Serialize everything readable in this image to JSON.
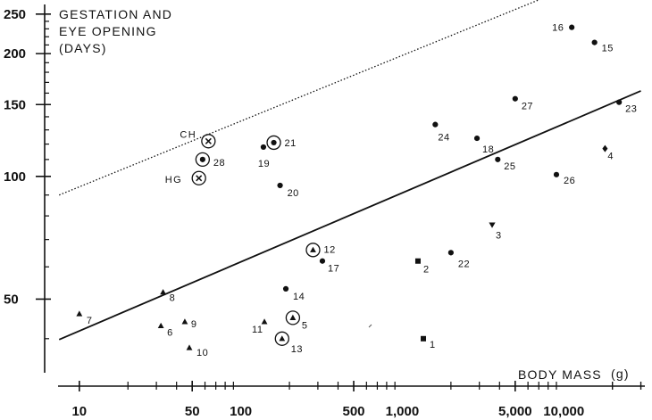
{
  "chart_data": {
    "type": "scatter",
    "ylabel_lines": [
      "GESTATION AND",
      "EYE OPENING",
      "(DAYS)"
    ],
    "xlabel": "BODY MASS",
    "xlabel_unit": "(g)",
    "x_scale": "log",
    "y_scale": "log",
    "xlim": [
      6.5,
      33000
    ],
    "ylim": [
      33,
      260
    ],
    "x_ticks": [
      10,
      50,
      100,
      500,
      1000,
      5000,
      10000
    ],
    "x_tick_labels": [
      "10",
      "50",
      "100",
      "500",
      "1,000",
      "5,000",
      "10,000"
    ],
    "y_ticks": [
      50,
      100,
      150,
      200,
      250
    ],
    "y_tick_labels": [
      "50",
      "100",
      "150",
      "200",
      "250"
    ],
    "points": [
      {
        "label": "1",
        "x": 1350,
        "y": 40,
        "marker": "square"
      },
      {
        "label": "2",
        "x": 1250,
        "y": 62,
        "marker": "square"
      },
      {
        "label": "3",
        "x": 3600,
        "y": 76,
        "marker": "triangle-down"
      },
      {
        "label": "4",
        "x": 18000,
        "y": 117,
        "marker": "diamond"
      },
      {
        "label": "5",
        "x": 210,
        "y": 45,
        "marker": "triangle",
        "circled": true
      },
      {
        "label": "6",
        "x": 32,
        "y": 43,
        "marker": "triangle"
      },
      {
        "label": "7",
        "x": 10,
        "y": 46,
        "marker": "triangle"
      },
      {
        "label": "8",
        "x": 33,
        "y": 52,
        "marker": "triangle"
      },
      {
        "label": "9",
        "x": 45,
        "y": 44,
        "marker": "triangle"
      },
      {
        "label": "10",
        "x": 48,
        "y": 38,
        "marker": "triangle"
      },
      {
        "label": "11",
        "x": 140,
        "y": 44,
        "marker": "triangle"
      },
      {
        "label": "12",
        "x": 280,
        "y": 66,
        "marker": "triangle",
        "circled": true
      },
      {
        "label": "13",
        "x": 180,
        "y": 40,
        "marker": "triangle",
        "circled": true
      },
      {
        "label": "14",
        "x": 190,
        "y": 53,
        "marker": "dot"
      },
      {
        "label": "15",
        "x": 15500,
        "y": 213,
        "marker": "dot"
      },
      {
        "label": "16",
        "x": 11200,
        "y": 232,
        "marker": "dot"
      },
      {
        "label": "17",
        "x": 320,
        "y": 62,
        "marker": "dot"
      },
      {
        "label": "18",
        "x": 2900,
        "y": 124,
        "marker": "dot"
      },
      {
        "label": "19",
        "x": 138,
        "y": 118,
        "marker": "dot"
      },
      {
        "label": "20",
        "x": 175,
        "y": 95,
        "marker": "dot"
      },
      {
        "label": "21",
        "x": 160,
        "y": 121,
        "marker": "dot",
        "circled": true
      },
      {
        "label": "22",
        "x": 2000,
        "y": 65,
        "marker": "dot"
      },
      {
        "label": "23",
        "x": 22000,
        "y": 152,
        "marker": "dot"
      },
      {
        "label": "24",
        "x": 1600,
        "y": 134,
        "marker": "dot"
      },
      {
        "label": "25",
        "x": 3900,
        "y": 110,
        "marker": "dot"
      },
      {
        "label": "26",
        "x": 9000,
        "y": 101,
        "marker": "dot"
      },
      {
        "label": "27",
        "x": 5000,
        "y": 155,
        "marker": "dot"
      },
      {
        "label": "28",
        "x": 58,
        "y": 110,
        "marker": "dot",
        "circled": true
      },
      {
        "label": "CH",
        "x": 63,
        "y": 122,
        "marker": "x",
        "circled": true
      },
      {
        "label": "HG",
        "x": 55,
        "y": 99,
        "marker": "x",
        "circled": true
      }
    ],
    "lines": [
      {
        "style": "solid",
        "x": [
          7.5,
          30000
        ],
        "y": [
          39.8,
          162
        ]
      },
      {
        "style": "dotted",
        "x": [
          7.5,
          8600
        ],
        "y": [
          90,
          280
        ]
      }
    ]
  }
}
